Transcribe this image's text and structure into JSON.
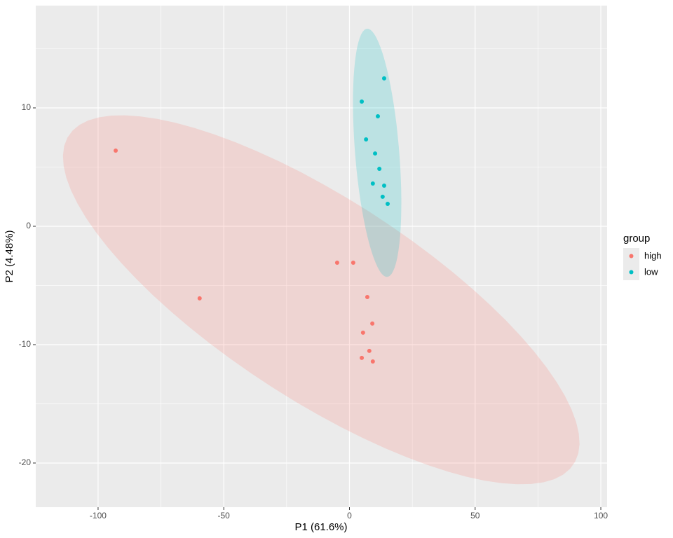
{
  "chart_data": {
    "type": "scatter",
    "xlabel": "P1 (61.6%)",
    "ylabel": "P2 (4.48%)",
    "xlim": [
      -124.8,
      102.5
    ],
    "ylim": [
      -23.73,
      18.64
    ],
    "xticks": [
      -100,
      -50,
      0,
      50,
      100
    ],
    "yticks": [
      -20,
      -10,
      0,
      10
    ],
    "grid": true,
    "ellipses": true,
    "legend_title": "group",
    "legend_position": "right",
    "series": [
      {
        "name": "high",
        "color": "#F8766D",
        "x": [
          -93.0,
          -59.6,
          -4.9,
          1.5,
          7.1,
          9.1,
          5.4,
          7.9,
          4.9,
          9.3
        ],
        "values": [
          6.39,
          -6.09,
          -3.08,
          -3.08,
          -5.98,
          -8.22,
          -8.99,
          -10.53,
          -11.12,
          -11.42
        ]
      },
      {
        "name": "low",
        "color": "#00BFC4",
        "x": [
          13.8,
          4.9,
          11.3,
          6.6,
          10.2,
          11.9,
          9.3,
          13.8,
          13.2,
          15.2
        ],
        "values": [
          12.49,
          10.53,
          9.29,
          7.34,
          6.15,
          4.85,
          3.61,
          3.43,
          2.49,
          1.89
        ]
      }
    ]
  }
}
